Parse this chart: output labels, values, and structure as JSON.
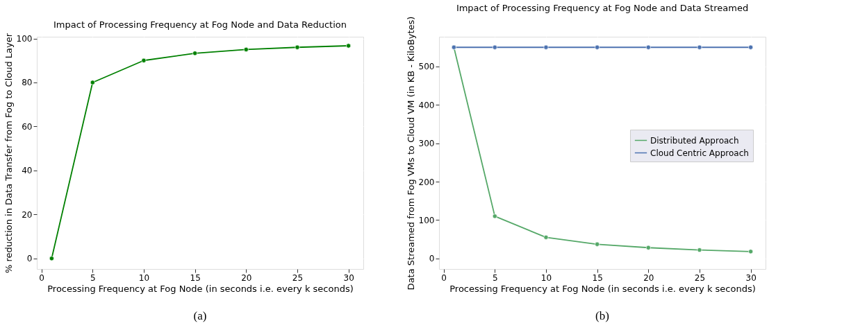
{
  "chart_data": [
    {
      "type": "line",
      "title": "Impact of Processing Frequency at Fog Node and Data Reduction",
      "xlabel": "Processing Frequency at Fog Node (in seconds i.e. every k seconds)",
      "ylabel": "% reduction in Data Transfer from Fog to Cloud Layer",
      "x": [
        1,
        5,
        10,
        15,
        20,
        25,
        30
      ],
      "series": [
        {
          "color": "#008000",
          "values": [
            0,
            80,
            90,
            93.3,
            95,
            96,
            96.7
          ]
        }
      ],
      "xlim": [
        -0.45,
        31.45
      ],
      "xticks": [
        0,
        5,
        10,
        15,
        20,
        25,
        30
      ],
      "ylim": [
        -4.8,
        100.8
      ],
      "yticks": [
        0,
        20,
        40,
        60,
        80,
        100
      ],
      "grid": true,
      "marker": "circle",
      "legend": false,
      "annotations": [
        "(a)"
      ]
    },
    {
      "type": "line",
      "title": "Impact of Processing Frequency at Fog Node and Data Streamed",
      "xlabel": "Processing Frequency at Fog Node (in seconds i.e. every k seconds)",
      "ylabel": "Data Streamed from Fog VMs to Cloud VM (in KB - KiloBytes)",
      "x": [
        1,
        5,
        10,
        15,
        20,
        25,
        30
      ],
      "series": [
        {
          "name": "Distributed Approach",
          "color": "#55a868",
          "values": [
            550,
            110,
            55,
            37,
            28,
            22,
            18
          ]
        },
        {
          "name": "Cloud Centric Approach",
          "color": "#4c72b0",
          "values": [
            550,
            550,
            550,
            550,
            550,
            550,
            550
          ]
        }
      ],
      "xlim": [
        -0.45,
        31.45
      ],
      "xticks": [
        0,
        5,
        10,
        15,
        20,
        25,
        30
      ],
      "ylim": [
        -27.5,
        577.5
      ],
      "yticks": [
        0,
        100,
        200,
        300,
        400,
        500
      ],
      "grid": true,
      "marker": "circle",
      "legend": "right",
      "annotations": [
        "(b)"
      ]
    }
  ]
}
